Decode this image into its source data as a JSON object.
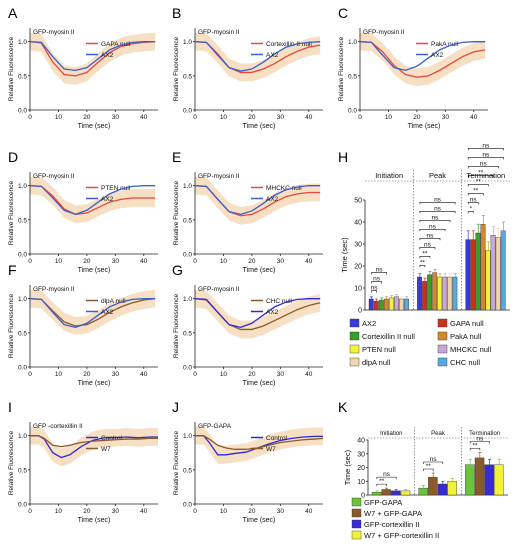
{
  "panels": [
    {
      "letter": "A"
    },
    {
      "letter": "B"
    },
    {
      "letter": "C"
    },
    {
      "letter": "D"
    },
    {
      "letter": "E"
    },
    {
      "letter": "F"
    },
    {
      "letter": "G"
    },
    {
      "letter": "H"
    },
    {
      "letter": "I"
    },
    {
      "letter": "J"
    },
    {
      "letter": "K"
    }
  ],
  "colors": {
    "ax2": "#3a5fcd",
    "mutant": "#e8473a",
    "mutant_brown": "#8b5a2b",
    "band": "#f5d9b8",
    "control_blue": "#2b2bd6",
    "w7_brown": "#8b5a2b"
  },
  "chart_data": [
    {
      "panel": "A",
      "type": "line",
      "title": "GFP-myosin II",
      "xlabel": "Time (sec)",
      "ylabel": "Relative Fluorescence",
      "xlim": [
        0,
        45
      ],
      "ylim": [
        0,
        1.2
      ],
      "xticks": [
        0,
        10,
        20,
        30,
        40
      ],
      "yticks": [
        0.0,
        0.5,
        1.0
      ],
      "ytick_labels": [
        "0.0",
        "0.5",
        "1.0"
      ],
      "series": [
        {
          "name": "GAPA null",
          "color": "#e8473a",
          "x": [
            0,
            4,
            8,
            12,
            16,
            20,
            24,
            28,
            32,
            36,
            40,
            44
          ],
          "y": [
            1.0,
            0.98,
            0.7,
            0.52,
            0.5,
            0.55,
            0.7,
            0.84,
            0.93,
            0.97,
            0.99,
            1.0
          ]
        },
        {
          "name": "AX2",
          "color": "#3a5fcd",
          "x": [
            0,
            4,
            8,
            12,
            16,
            20,
            24,
            28,
            32,
            36,
            40,
            44
          ],
          "y": [
            1.0,
            0.99,
            0.78,
            0.6,
            0.58,
            0.62,
            0.75,
            0.88,
            0.95,
            0.99,
            1.0,
            1.0
          ]
        }
      ]
    },
    {
      "panel": "B",
      "type": "line",
      "title": "GFP-myosin II",
      "xlabel": "Time (sec)",
      "ylabel": "Relative Fluorescence",
      "xlim": [
        0,
        45
      ],
      "ylim": [
        0,
        1.2
      ],
      "xticks": [
        0,
        10,
        20,
        30,
        40
      ],
      "yticks": [
        0.0,
        0.5,
        1.0
      ],
      "ytick_labels": [
        "0.0",
        "0.5",
        "1.0"
      ],
      "series": [
        {
          "name": "Cortexillin II null",
          "color": "#e8473a",
          "x": [
            0,
            4,
            8,
            12,
            16,
            20,
            24,
            28,
            32,
            36,
            40,
            44
          ],
          "y": [
            1.0,
            0.99,
            0.82,
            0.62,
            0.55,
            0.55,
            0.6,
            0.68,
            0.78,
            0.86,
            0.92,
            0.95
          ]
        },
        {
          "name": "AX2",
          "color": "#3a5fcd",
          "x": [
            0,
            4,
            8,
            12,
            16,
            20,
            24,
            28,
            32,
            36,
            40,
            44
          ],
          "y": [
            1.0,
            0.99,
            0.8,
            0.62,
            0.57,
            0.6,
            0.7,
            0.82,
            0.92,
            0.97,
            0.99,
            1.0
          ]
        }
      ]
    },
    {
      "panel": "C",
      "type": "line",
      "title": "GFP-myosin II",
      "xlabel": "Time (sec)",
      "ylabel": "Relative Fluorescence",
      "xlim": [
        0,
        45
      ],
      "ylim": [
        0,
        1.2
      ],
      "xticks": [
        0,
        10,
        20,
        30,
        40
      ],
      "yticks": [
        0.0,
        0.5,
        1.0
      ],
      "ytick_labels": [
        "0.0",
        "0.5",
        "1.0"
      ],
      "series": [
        {
          "name": "PakA null",
          "color": "#e8473a",
          "x": [
            0,
            4,
            8,
            12,
            16,
            20,
            24,
            28,
            32,
            36,
            40,
            44
          ],
          "y": [
            1.0,
            0.99,
            0.85,
            0.65,
            0.52,
            0.48,
            0.5,
            0.58,
            0.68,
            0.78,
            0.85,
            0.88
          ]
        },
        {
          "name": "AX2",
          "color": "#3a5fcd",
          "x": [
            0,
            4,
            8,
            12,
            16,
            20,
            24,
            28,
            32,
            36,
            40,
            44
          ],
          "y": [
            1.0,
            0.99,
            0.8,
            0.62,
            0.58,
            0.64,
            0.76,
            0.88,
            0.95,
            0.99,
            1.0,
            1.0
          ]
        }
      ]
    },
    {
      "panel": "D",
      "type": "line",
      "title": "GFP-myosin II",
      "xlabel": "Time (sec)",
      "ylabel": "Relative Fluorescence",
      "xlim": [
        0,
        45
      ],
      "ylim": [
        0,
        1.2
      ],
      "xticks": [
        0,
        10,
        20,
        30,
        40
      ],
      "yticks": [
        0.0,
        0.5,
        1.0
      ],
      "ytick_labels": [
        "0.0",
        "0.5",
        "1.0"
      ],
      "series": [
        {
          "name": "PTEN null",
          "color": "#e8473a",
          "x": [
            0,
            4,
            8,
            12,
            16,
            20,
            24,
            28,
            32,
            36,
            40,
            44
          ],
          "y": [
            1.0,
            0.99,
            0.85,
            0.66,
            0.58,
            0.6,
            0.68,
            0.76,
            0.8,
            0.82,
            0.82,
            0.82
          ]
        },
        {
          "name": "AX2",
          "color": "#3a5fcd",
          "x": [
            0,
            4,
            8,
            12,
            16,
            20,
            24,
            28,
            32,
            36,
            40,
            44
          ],
          "y": [
            1.0,
            0.99,
            0.82,
            0.64,
            0.58,
            0.64,
            0.76,
            0.88,
            0.95,
            0.99,
            1.0,
            1.0
          ]
        }
      ]
    },
    {
      "panel": "E",
      "type": "line",
      "title": "GFP-myosin II",
      "xlabel": "Time (sec)",
      "ylabel": "Relative Fluorescence",
      "xlim": [
        0,
        45
      ],
      "ylim": [
        0,
        1.2
      ],
      "xticks": [
        0,
        10,
        20,
        30,
        40
      ],
      "yticks": [
        0.0,
        0.5,
        1.0
      ],
      "ytick_labels": [
        "0.0",
        "0.5",
        "1.0"
      ],
      "series": [
        {
          "name": "MHCKC null",
          "color": "#e8473a",
          "x": [
            0,
            4,
            8,
            12,
            16,
            20,
            24,
            28,
            32,
            36,
            40,
            44
          ],
          "y": [
            1.0,
            0.99,
            0.8,
            0.62,
            0.56,
            0.58,
            0.66,
            0.76,
            0.84,
            0.88,
            0.9,
            0.9
          ]
        },
        {
          "name": "AX2",
          "color": "#3a5fcd",
          "x": [
            0,
            4,
            8,
            12,
            16,
            20,
            24,
            28,
            32,
            36,
            40,
            44
          ],
          "y": [
            1.0,
            0.99,
            0.8,
            0.62,
            0.58,
            0.63,
            0.74,
            0.86,
            0.94,
            0.98,
            1.0,
            1.0
          ]
        }
      ]
    },
    {
      "panel": "F",
      "type": "line",
      "title": "GFP-myosin II",
      "xlabel": "Time (sec)",
      "ylabel": "Relative Fluorescence",
      "xlim": [
        0,
        45
      ],
      "ylim": [
        0,
        1.2
      ],
      "xticks": [
        0,
        10,
        20,
        30,
        40
      ],
      "yticks": [
        0.0,
        0.5,
        1.0
      ],
      "ytick_labels": [
        "0.0",
        "0.5",
        "1.0"
      ],
      "series": [
        {
          "name": "dlpA null",
          "color": "#8b5a2b",
          "x": [
            0,
            4,
            8,
            12,
            16,
            20,
            24,
            28,
            32,
            36,
            40,
            44
          ],
          "y": [
            1.0,
            0.99,
            0.82,
            0.66,
            0.6,
            0.62,
            0.7,
            0.8,
            0.88,
            0.94,
            0.98,
            1.0
          ]
        },
        {
          "name": "AX2",
          "color": "#3a5fcd",
          "x": [
            0,
            4,
            8,
            12,
            16,
            20,
            24,
            28,
            32,
            36,
            40,
            44
          ],
          "y": [
            1.0,
            0.99,
            0.8,
            0.62,
            0.58,
            0.64,
            0.76,
            0.88,
            0.95,
            0.99,
            1.0,
            1.0
          ]
        }
      ]
    },
    {
      "panel": "G",
      "type": "line",
      "title": "GFP-myosin II",
      "xlabel": "Time (sec)",
      "ylabel": "Relative Fluorescence",
      "xlim": [
        0,
        45
      ],
      "ylim": [
        0,
        1.2
      ],
      "xticks": [
        0,
        10,
        20,
        30,
        40
      ],
      "yticks": [
        0.0,
        0.5,
        1.0
      ],
      "ytick_labels": [
        "0.0",
        "0.5",
        "1.0"
      ],
      "series": [
        {
          "name": "CHC null",
          "color": "#8b5a2b",
          "x": [
            0,
            4,
            8,
            12,
            16,
            20,
            24,
            28,
            32,
            36,
            40,
            44
          ],
          "y": [
            1.0,
            0.98,
            0.8,
            0.62,
            0.55,
            0.55,
            0.6,
            0.68,
            0.76,
            0.84,
            0.9,
            0.94
          ]
        },
        {
          "name": "AX2",
          "color": "#2b2bd6",
          "x": [
            0,
            4,
            8,
            12,
            16,
            20,
            24,
            28,
            32,
            36,
            40,
            44
          ],
          "y": [
            1.0,
            0.99,
            0.8,
            0.62,
            0.58,
            0.64,
            0.76,
            0.88,
            0.95,
            0.99,
            1.0,
            1.0
          ]
        }
      ]
    },
    {
      "panel": "I",
      "type": "line",
      "title": "GFP -cortexillin II",
      "xlabel": "Time (sec)",
      "ylabel": "Relative Fluorescence",
      "xlim": [
        0,
        45
      ],
      "ylim": [
        0,
        1.2
      ],
      "xticks": [
        0,
        10,
        20,
        30,
        40
      ],
      "yticks": [
        0.0,
        0.5,
        1.0
      ],
      "ytick_labels": [
        "0.0",
        "0.5",
        "1.0"
      ],
      "series": [
        {
          "name": "Control",
          "color": "#2b2bd6",
          "x": [
            0,
            3,
            5,
            8,
            11,
            14,
            18,
            22,
            26,
            30,
            34,
            38,
            42,
            45
          ],
          "y": [
            1.0,
            1.0,
            0.95,
            0.75,
            0.68,
            0.72,
            0.84,
            0.93,
            0.97,
            0.97,
            0.98,
            0.97,
            0.98,
            0.98
          ]
        },
        {
          "name": "W7",
          "color": "#8b5a2b",
          "x": [
            0,
            3,
            5,
            8,
            11,
            14,
            18,
            22,
            26,
            30,
            34,
            38,
            42,
            45
          ],
          "y": [
            1.0,
            1.0,
            0.96,
            0.86,
            0.84,
            0.86,
            0.9,
            0.92,
            0.93,
            0.94,
            0.95,
            0.95,
            0.96,
            0.96
          ]
        }
      ]
    },
    {
      "panel": "J",
      "type": "line",
      "title": "GFP-GAPA",
      "xlabel": "Time (sec)",
      "ylabel": "Relative Fluorescence",
      "xlim": [
        0,
        45
      ],
      "ylim": [
        0,
        1.2
      ],
      "xticks": [
        0,
        10,
        20,
        30,
        40
      ],
      "yticks": [
        0.0,
        0.5,
        1.0
      ],
      "ytick_labels": [
        "0.0",
        "0.5",
        "1.0"
      ],
      "series": [
        {
          "name": "Control",
          "color": "#2b2bd6",
          "x": [
            0,
            3,
            5,
            8,
            11,
            14,
            18,
            22,
            26,
            30,
            34,
            38,
            42,
            45
          ],
          "y": [
            1.0,
            1.0,
            0.9,
            0.72,
            0.72,
            0.74,
            0.76,
            0.82,
            0.88,
            0.93,
            0.96,
            0.98,
            0.99,
            0.99
          ]
        },
        {
          "name": "W7",
          "color": "#8b5a2b",
          "x": [
            0,
            3,
            5,
            8,
            11,
            14,
            18,
            22,
            26,
            30,
            34,
            38,
            42,
            45
          ],
          "y": [
            1.0,
            1.0,
            0.95,
            0.86,
            0.82,
            0.8,
            0.8,
            0.82,
            0.86,
            0.9,
            0.92,
            0.94,
            0.95,
            0.96
          ]
        }
      ]
    },
    {
      "panel": "H",
      "type": "bar",
      "xlabel": "",
      "ylabel": "Time (sec)",
      "ylim": [
        0,
        50
      ],
      "yticks": [
        0,
        10,
        20,
        30,
        40,
        50
      ],
      "groups": [
        "Initiation",
        "Peak",
        "Termination"
      ],
      "series": [
        {
          "name": "AX2",
          "color": "#3a3ad6",
          "values": [
            5,
            15,
            32
          ]
        },
        {
          "name": "GAPA null",
          "color": "#c8321e",
          "values": [
            4,
            13,
            32
          ]
        },
        {
          "name": "Cortexillin II null",
          "color": "#3a9e2a",
          "values": [
            4.5,
            16,
            35
          ]
        },
        {
          "name": "PakA null",
          "color": "#d2872a",
          "values": [
            5,
            17,
            39
          ]
        },
        {
          "name": "PTEN null",
          "color": "#f2f23a",
          "values": [
            5.5,
            15,
            27
          ]
        },
        {
          "name": "MHCKC null",
          "color": "#c8a6d8",
          "values": [
            6,
            15,
            34
          ]
        },
        {
          "name": "dlpA null",
          "color": "#f0d6ae",
          "values": [
            5,
            15,
            33
          ]
        },
        {
          "name": "CHC null",
          "color": "#5aa8e0",
          "values": [
            5,
            15,
            36
          ]
        }
      ],
      "errors": [
        [
          1,
          1.5,
          4
        ],
        [
          1,
          1.5,
          4
        ],
        [
          1,
          1.5,
          4
        ],
        [
          1,
          1.5,
          4
        ],
        [
          1,
          1.5,
          4
        ],
        [
          1,
          1.5,
          4
        ],
        [
          1,
          1.5,
          4
        ],
        [
          1,
          1.5,
          4
        ]
      ],
      "significance": {
        "initiation": [
          "ns",
          "ns",
          "ns"
        ],
        "peak": [
          "**",
          "**",
          "ns",
          "ns",
          "ns",
          "ns",
          "ns",
          "ns"
        ],
        "termination": [
          "*",
          "ns",
          "**",
          "**",
          "**",
          "ns",
          "ns",
          "ns"
        ]
      },
      "legend_position": "bottom"
    },
    {
      "panel": "K",
      "type": "bar",
      "xlabel": "",
      "ylabel": "Time (sec)",
      "ylim": [
        0,
        40
      ],
      "yticks": [
        0,
        10,
        20,
        30,
        40
      ],
      "groups": [
        "Initiation",
        "Peak",
        "Termination"
      ],
      "series": [
        {
          "name": "GFP-GAPA",
          "color": "#6cc43a",
          "values": [
            2,
            5,
            22
          ]
        },
        {
          "name": "W7 + GFP-GAPA",
          "color": "#8b5a2b",
          "values": [
            4,
            13,
            27
          ]
        },
        {
          "name": "GFP-cortexillin II",
          "color": "#3a2ad6",
          "values": [
            3,
            8,
            22
          ]
        },
        {
          "name": "W7 + GFP-cortexillin II",
          "color": "#f2f23a",
          "values": [
            3,
            10,
            22
          ]
        }
      ],
      "errors": [
        [
          1,
          2,
          4
        ],
        [
          1,
          3,
          4
        ],
        [
          1,
          2,
          4
        ],
        [
          1,
          2,
          4
        ]
      ],
      "significance": {
        "initiation": [
          "**",
          "ns"
        ],
        "peak": [
          "**",
          "ns"
        ],
        "termination": [
          "**",
          "ns"
        ]
      },
      "legend_position": "bottom"
    }
  ]
}
